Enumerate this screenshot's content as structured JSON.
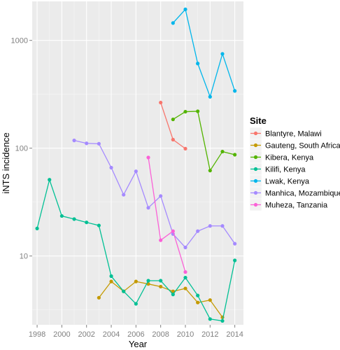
{
  "chart_data": {
    "type": "line",
    "title": "",
    "xlabel": "Year",
    "ylabel": "iNTS incidence",
    "y_scale": "log10",
    "xlim": [
      1997.6,
      2014.7
    ],
    "ylim": [
      2.3,
      2300
    ],
    "x_ticks": [
      1998,
      2000,
      2002,
      2004,
      2006,
      2008,
      2010,
      2012,
      2014
    ],
    "y_ticks": [
      10,
      100,
      1000
    ],
    "grid": true,
    "legend": {
      "title": "Site",
      "placement": "right"
    },
    "series": [
      {
        "name": "Blantyre, Malawi",
        "color": "#F8766D",
        "points": [
          [
            2008,
            265
          ],
          [
            2009,
            120
          ],
          [
            2010,
            99
          ]
        ]
      },
      {
        "name": "Gauteng, South Africa",
        "color": "#C49A00",
        "points": [
          [
            2003,
            4.1
          ],
          [
            2004,
            5.8
          ],
          [
            2005,
            4.7
          ],
          [
            2006,
            5.8
          ],
          [
            2007,
            5.5
          ],
          [
            2008,
            5.2
          ],
          [
            2009,
            4.7
          ],
          [
            2010,
            5.0
          ],
          [
            2011,
            3.7
          ],
          [
            2012,
            3.9
          ],
          [
            2013,
            2.7
          ]
        ]
      },
      {
        "name": "Kibera, Kenya",
        "color": "#53B400",
        "points": [
          [
            2009,
            185
          ],
          [
            2010,
            218
          ],
          [
            2011,
            220
          ],
          [
            2012,
            62
          ],
          [
            2013,
            93
          ],
          [
            2014,
            87
          ]
        ]
      },
      {
        "name": "Kilifi, Kenya",
        "color": "#00C094",
        "points": [
          [
            1998,
            18
          ],
          [
            1999,
            51
          ],
          [
            2000,
            23.5
          ],
          [
            2001,
            22
          ],
          [
            2002,
            20.5
          ],
          [
            2003,
            19.2
          ],
          [
            2004,
            6.5
          ],
          [
            2005,
            4.7
          ],
          [
            2006,
            3.6
          ],
          [
            2007,
            5.9
          ],
          [
            2008,
            5.9
          ],
          [
            2009,
            4.4
          ],
          [
            2010,
            6.3
          ],
          [
            2011,
            4.3
          ],
          [
            2012,
            2.6
          ],
          [
            2013,
            2.5
          ],
          [
            2014,
            9.1
          ]
        ]
      },
      {
        "name": "Lwak, Kenya",
        "color": "#00B6EB",
        "points": [
          [
            2009,
            1450
          ],
          [
            2010,
            1940
          ],
          [
            2011,
            610
          ],
          [
            2012,
            300
          ],
          [
            2013,
            750
          ],
          [
            2014,
            340
          ]
        ]
      },
      {
        "name": "Manhica, Mozambique",
        "color": "#A58AFF",
        "points": [
          [
            2001,
            118
          ],
          [
            2002,
            111
          ],
          [
            2003,
            110
          ],
          [
            2004,
            66
          ],
          [
            2005,
            37
          ],
          [
            2006,
            61
          ],
          [
            2007,
            28
          ],
          [
            2008,
            36
          ],
          [
            2009,
            16
          ],
          [
            2010,
            12
          ],
          [
            2011,
            17
          ],
          [
            2012,
            19
          ],
          [
            2013,
            19
          ],
          [
            2014,
            13
          ]
        ]
      },
      {
        "name": "Muheza, Tanzania",
        "color": "#FB61D7",
        "points": [
          [
            2007,
            82
          ],
          [
            2008,
            14
          ],
          [
            2009,
            17
          ],
          [
            2010,
            7.1
          ]
        ]
      }
    ]
  }
}
